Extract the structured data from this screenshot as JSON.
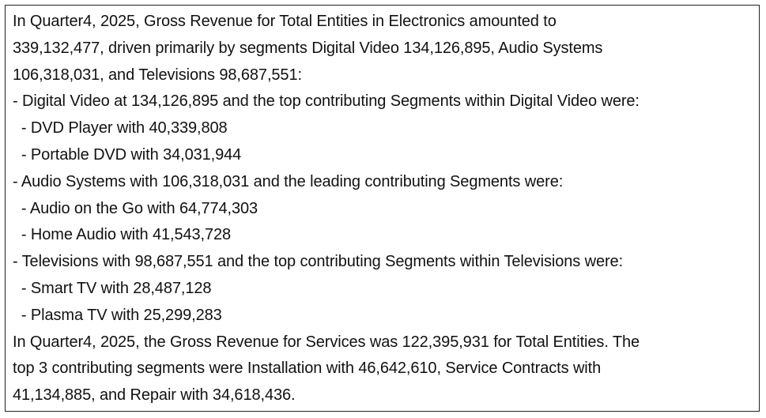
{
  "text_box": {
    "lines": [
      "In Quarter4, 2025, Gross Revenue for Total Entities in Electronics amounted to",
      "339,132,477, driven primarily by segments Digital Video 134,126,895, Audio Systems",
      "106,318,031, and Televisions 98,687,551:",
      "- Digital Video at 134,126,895 and the top contributing Segments within Digital Video were:",
      "  - DVD Player with 40,339,808",
      "  - Portable DVD with 34,031,944",
      "- Audio Systems with 106,318,031 and the leading contributing Segments were:",
      "  - Audio on the Go with 64,774,303",
      "  - Home Audio with 41,543,728",
      "- Televisions with 98,687,551 and the top contributing Segments within Televisions were:",
      "  - Smart TV with 28,487,128",
      "  - Plasma TV with 25,299,283",
      "In Quarter4, 2025, the Gross Revenue for Services was 122,395,931 for Total Entities. The",
      "top 3 contributing segments were Installation with 46,642,610, Service Contracts with",
      "41,134,885, and Repair with 34,618,436."
    ]
  }
}
